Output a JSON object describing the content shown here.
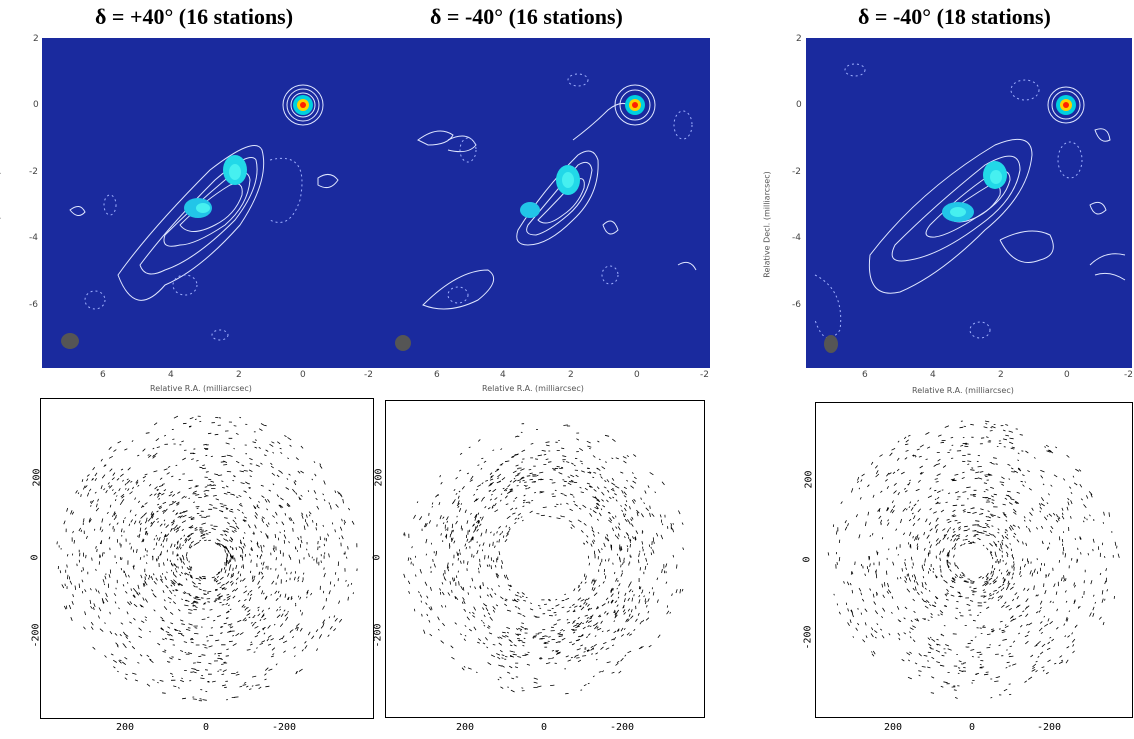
{
  "titles": [
    "δ =  +40° (16 stations)",
    "δ = -40° (16 stations)",
    "δ = -40° (18 stations)"
  ],
  "images": {
    "x_label": "Relative R.A. (milliarcsec)",
    "y_label": "Relative Decl. (milliarcsec)",
    "x_ticks": [
      "6",
      "4",
      "2",
      "0",
      "-2"
    ],
    "y_ticks": [
      "2",
      "0",
      "-2",
      "-4",
      "-6"
    ]
  },
  "uv": {
    "x_ticks": [
      "200",
      "0",
      "-200"
    ],
    "y_ticks": [
      "200",
      "0",
      "-200"
    ]
  },
  "colors": {
    "background": "#1a2a9e",
    "contour": "#dfe6ff",
    "core": "#ff2000"
  }
}
